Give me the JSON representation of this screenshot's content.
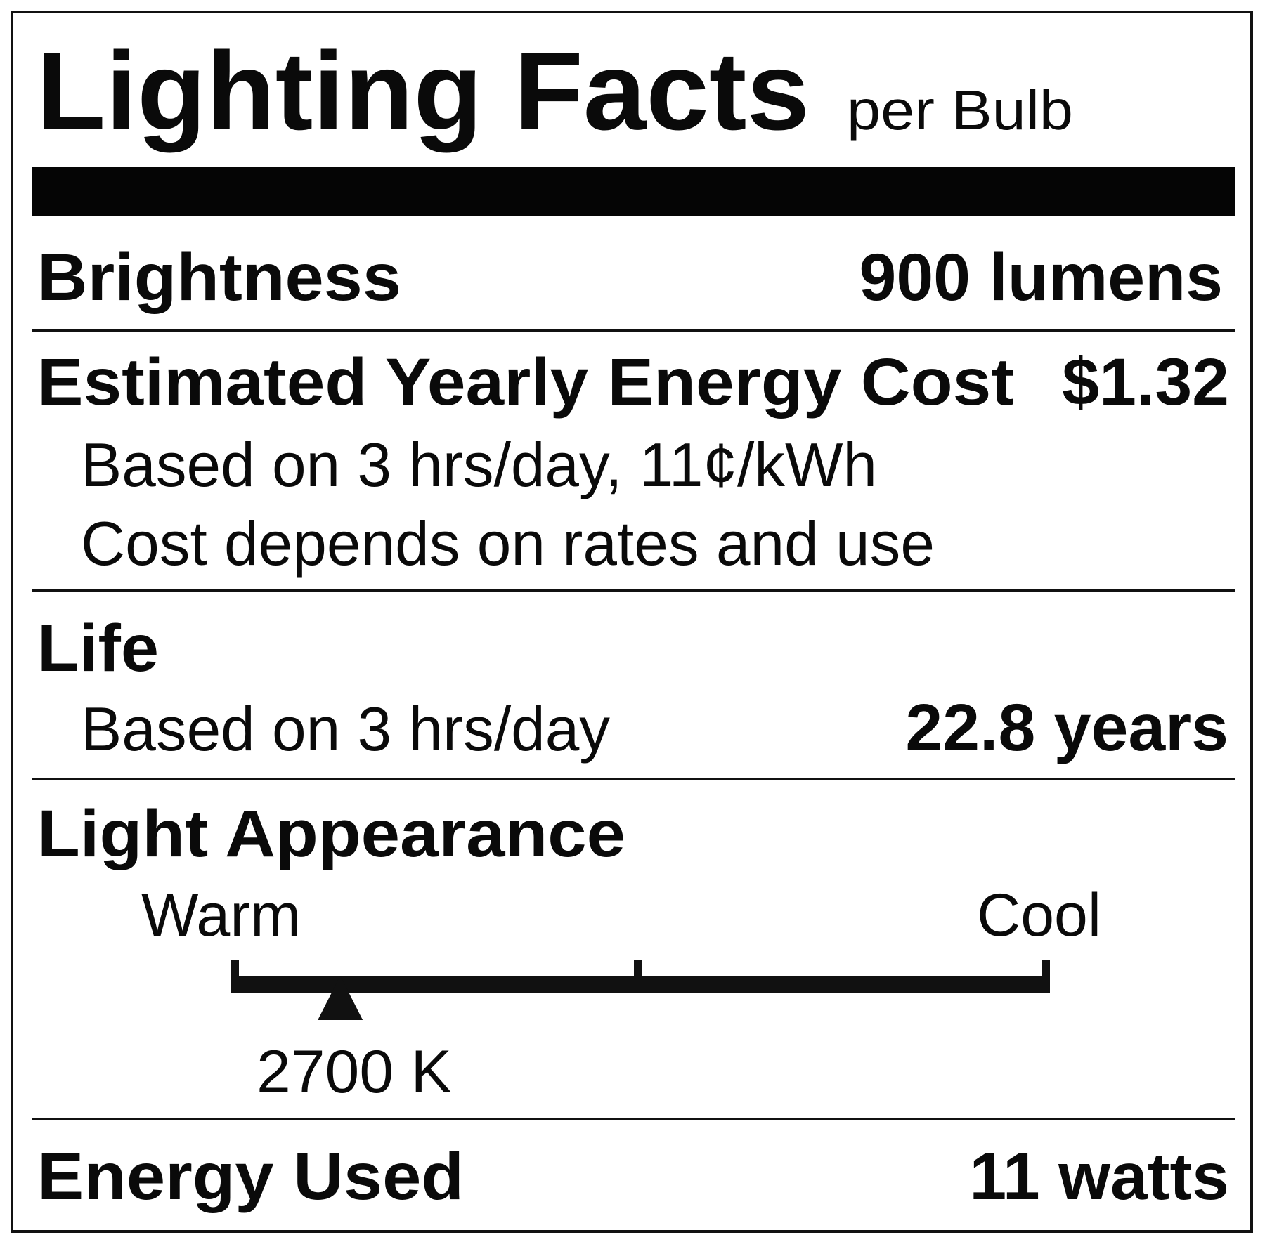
{
  "label": {
    "title": "Lighting Facts",
    "subtitle": "per Bulb",
    "brightness": {
      "label": "Brightness",
      "value": "900 lumens"
    },
    "energy_cost": {
      "label": "Estimated Yearly Energy Cost",
      "value": "$1.32",
      "note1": "Based on 3 hrs/day, 11¢/kWh",
      "note2": "Cost depends on rates and use"
    },
    "life": {
      "label": "Life",
      "note": "Based on 3 hrs/day",
      "value": "22.8 years"
    },
    "light_appearance": {
      "label": "Light Appearance",
      "warm_label": "Warm",
      "cool_label": "Cool",
      "value": "2700 K",
      "scale_min_k": 2700,
      "scale_max_k": 6500,
      "marker_fraction": 0.13
    },
    "energy_used": {
      "label": "Energy Used",
      "value": "11 watts"
    }
  }
}
